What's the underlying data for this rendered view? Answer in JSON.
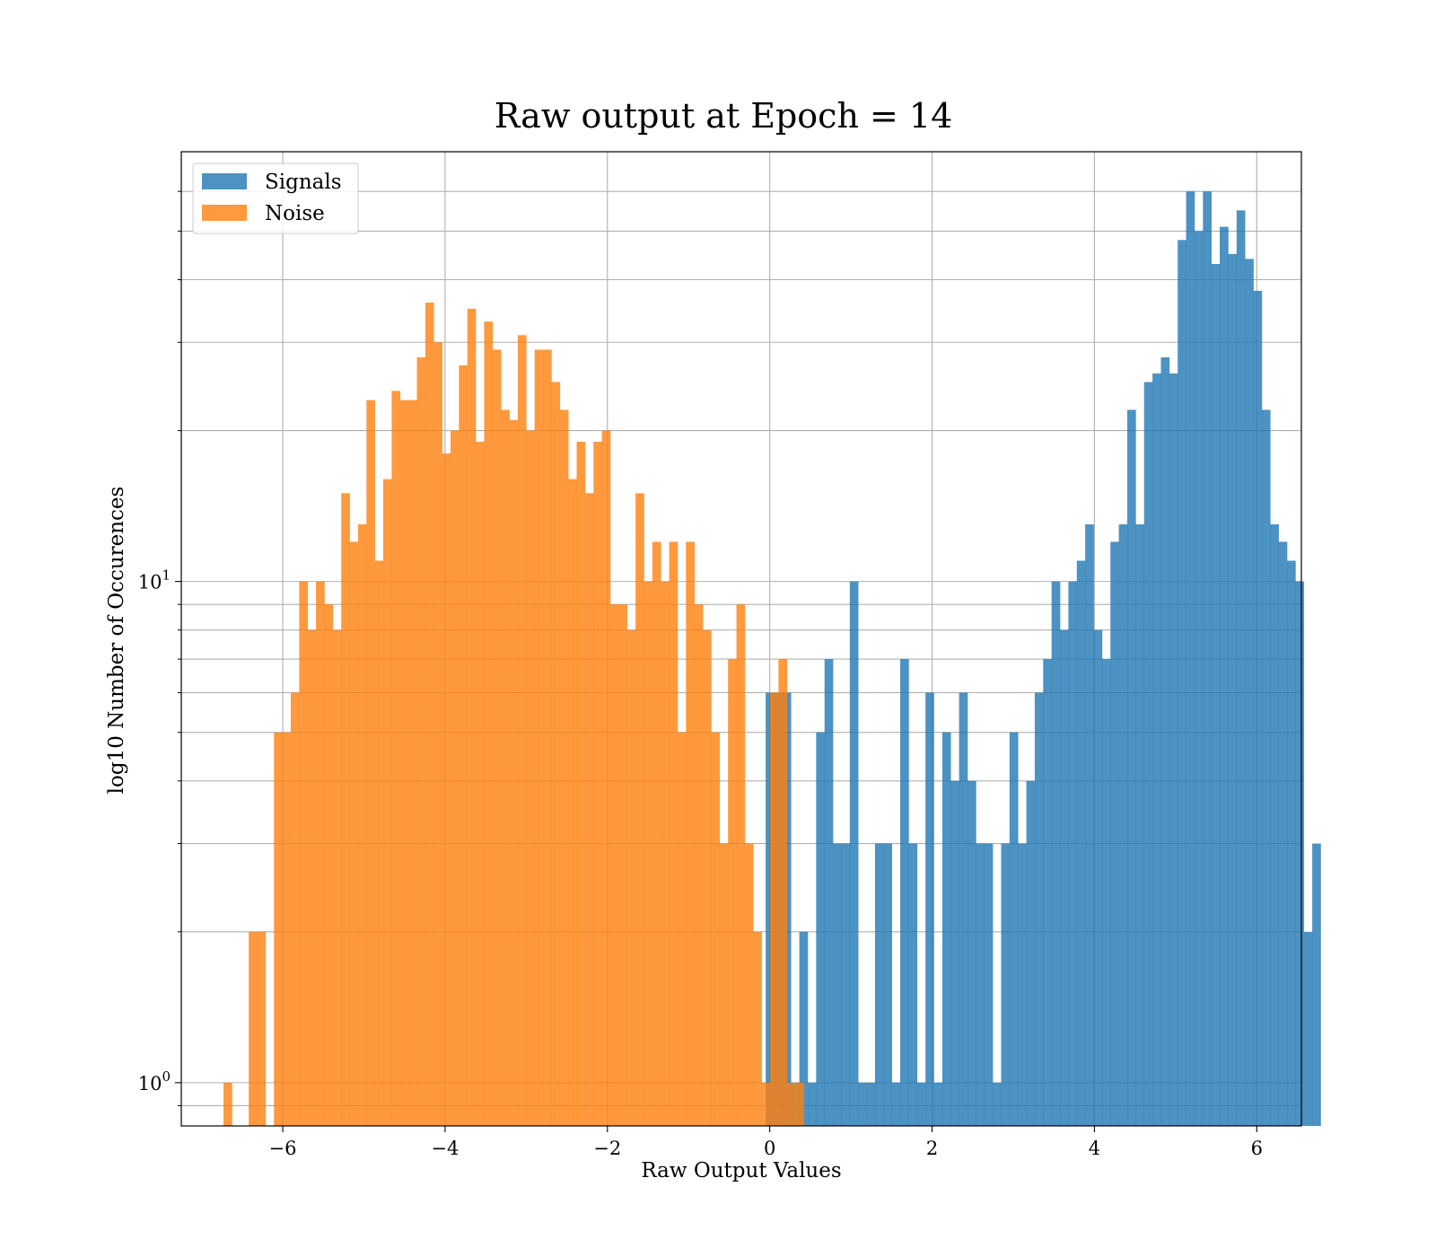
{
  "chart_data": {
    "type": "bar",
    "subtype": "histogram",
    "title": "Raw output at Epoch = 14",
    "xlabel": "Raw Output Values",
    "ylabel": "log10 Number of Occurences",
    "xlim": [
      -7.25,
      6.55
    ],
    "ylim": [
      0.82,
      72
    ],
    "y_scale": "log",
    "grid": true,
    "legend_position": "top-left",
    "x_ticks": [
      -6,
      -4,
      -2,
      0,
      2,
      4,
      6
    ],
    "x_tick_labels": [
      "−6",
      "−4",
      "−2",
      "0",
      "2",
      "4",
      "6"
    ],
    "y_major_ticks": [
      {
        "value": 1,
        "base": "10",
        "exp": "0"
      },
      {
        "value": 10,
        "base": "10",
        "exp": "1"
      }
    ],
    "y_minor_ticks": [
      0.9,
      2,
      3,
      4,
      5,
      6,
      7,
      8,
      9,
      20,
      30,
      40,
      50,
      60
    ],
    "series": [
      {
        "name": "Signals",
        "color": "#1f77b4",
        "opacity": 0.8,
        "bin_start": -0.05,
        "bin_width": 0.1036,
        "counts": [
          6,
          6,
          6,
          1,
          2,
          1,
          5,
          7,
          3,
          3,
          10,
          1,
          1,
          3,
          3,
          1,
          7,
          3,
          1,
          6,
          1,
          5,
          4,
          6,
          4,
          3,
          3,
          1,
          3,
          5,
          3,
          4,
          6,
          7,
          10,
          8,
          10,
          11,
          13,
          8,
          7,
          12,
          13,
          22,
          13,
          25,
          26,
          28,
          26,
          48,
          60,
          50,
          60,
          43,
          51,
          45,
          55,
          44,
          38,
          22,
          13,
          12,
          11,
          10,
          2,
          3
        ]
      },
      {
        "name": "Noise",
        "color": "#ff7f0e",
        "opacity": 0.8,
        "bin_start": -6.73,
        "bin_width": 0.1036,
        "counts": [
          1,
          0,
          0,
          2,
          2,
          0,
          5,
          5,
          6,
          10,
          8,
          10,
          9,
          8,
          15,
          12,
          13,
          23,
          11,
          16,
          24,
          23,
          23,
          28,
          36,
          30,
          18,
          20,
          27,
          35,
          19,
          33,
          29,
          22,
          21,
          31,
          20,
          29,
          29,
          25,
          22,
          16,
          19,
          15,
          19,
          20,
          9,
          9,
          8,
          15,
          10,
          12,
          10,
          12,
          5,
          12,
          9,
          8,
          5,
          3,
          7,
          9,
          3,
          2,
          1,
          6,
          7,
          1,
          1
        ]
      }
    ]
  }
}
